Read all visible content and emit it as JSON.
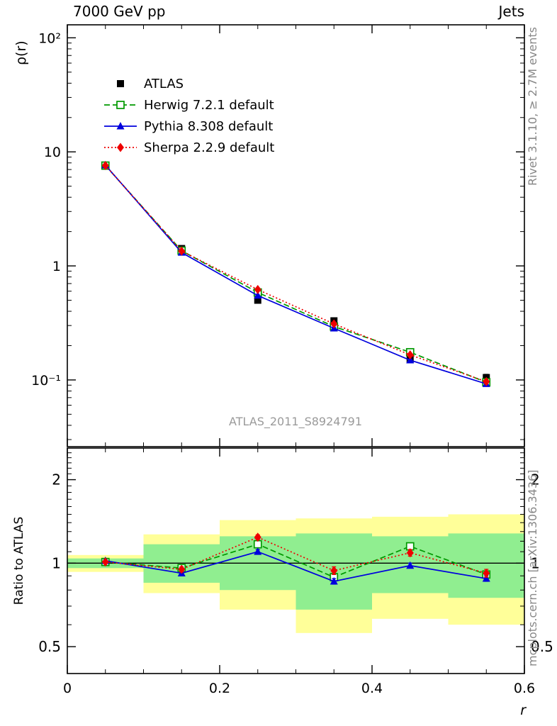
{
  "header": {
    "left": "7000 GeV pp",
    "right": "Jets"
  },
  "side_notes": {
    "top": "Rivet 3.1.10, ≥ 2.7M events",
    "bottom": "mcplots.cern.ch [arXiv:1306.3436]"
  },
  "watermark": "ATLAS_2011_S8924791",
  "chart_data": {
    "type": "line",
    "title": "7000 GeV pp — Jets",
    "xlabel": "r",
    "x": [
      0.05,
      0.15,
      0.25,
      0.35,
      0.45,
      0.55
    ],
    "xlim": [
      0,
      0.6
    ],
    "x_minor_step": 0.05,
    "xticks": [
      0,
      0.2,
      0.4,
      0.6
    ],
    "xtick_labels": [
      "0",
      "0.2",
      "0.4",
      "0.6"
    ],
    "bin_edges": [
      0,
      0.1,
      0.2,
      0.3,
      0.4,
      0.5,
      0.6
    ],
    "legend_position": "top-left-inside",
    "main": {
      "ylabel": "ρ(r)",
      "yscale": "log",
      "ylim": [
        0.026,
        130
      ],
      "yticks": [
        0.1,
        1,
        10,
        100
      ],
      "ytick_labels": [
        "10⁻¹",
        "1",
        "10",
        "10²"
      ],
      "series": [
        {
          "name": "ATLAS",
          "color": "#000000",
          "marker": "square-filled",
          "line": "none",
          "values": [
            7.5,
            1.42,
            0.5,
            0.33,
            0.152,
            0.105
          ],
          "errors": [
            0.25,
            0.06,
            0.022,
            0.015,
            0.008,
            0.007
          ]
        },
        {
          "name": "Herwig 7.2.1 default",
          "color": "#009900",
          "marker": "square-open",
          "line": "dashed",
          "values": [
            7.58,
            1.36,
            0.585,
            0.294,
            0.175,
            0.0955
          ],
          "errors": [
            0.05,
            0.012,
            0.006,
            0.004,
            0.003,
            0.002
          ]
        },
        {
          "name": "Pythia 8.308 default",
          "color": "#0000dd",
          "marker": "triangle-filled",
          "line": "solid",
          "values": [
            7.65,
            1.31,
            0.55,
            0.284,
            0.149,
            0.0924
          ],
          "errors": [
            0.05,
            0.012,
            0.006,
            0.004,
            0.003,
            0.002
          ]
        },
        {
          "name": "Sherpa 2.2.9 default",
          "color": "#ee0000",
          "marker": "diamond-filled",
          "line": "dotted",
          "values": [
            7.58,
            1.35,
            0.62,
            0.31,
            0.166,
            0.0966
          ],
          "errors": [
            0.08,
            0.02,
            0.01,
            0.007,
            0.005,
            0.004
          ]
        }
      ]
    },
    "ratio": {
      "ylabel": "Ratio to ATLAS",
      "yscale": "log",
      "ylim": [
        0.4,
        2.6
      ],
      "yticks": [
        0.5,
        1,
        2
      ],
      "ytick_labels": [
        "0.5",
        "1",
        "2"
      ],
      "reference": {
        "name": "ATLAS",
        "value": 1,
        "color": "#000000"
      },
      "bands": [
        {
          "name": "uncertainty-band-outer",
          "color": "#ffff99",
          "ranges": [
            [
              0.93,
              1.07
            ],
            [
              0.78,
              1.27
            ],
            [
              0.68,
              1.43
            ],
            [
              0.56,
              1.45
            ],
            [
              0.63,
              1.47
            ],
            [
              0.6,
              1.5
            ]
          ]
        },
        {
          "name": "uncertainty-band-inner",
          "color": "#90ee90",
          "ranges": [
            [
              0.96,
              1.04
            ],
            [
              0.85,
              1.17
            ],
            [
              0.8,
              1.25
            ],
            [
              0.68,
              1.28
            ],
            [
              0.78,
              1.25
            ],
            [
              0.75,
              1.28
            ]
          ]
        }
      ],
      "series": [
        {
          "name": "Herwig 7.2.1 default",
          "color": "#009900",
          "marker": "square-open",
          "line": "dashed",
          "values": [
            1.01,
            0.96,
            1.17,
            0.89,
            1.15,
            0.91
          ],
          "errors": [
            0.01,
            0.015,
            0.02,
            0.02,
            0.025,
            0.025
          ]
        },
        {
          "name": "Pythia 8.308 default",
          "color": "#0000dd",
          "marker": "triangle-filled",
          "line": "solid",
          "values": [
            1.02,
            0.92,
            1.1,
            0.86,
            0.98,
            0.88
          ],
          "errors": [
            0.01,
            0.015,
            0.02,
            0.02,
            0.02,
            0.02
          ]
        },
        {
          "name": "Sherpa 2.2.9 default",
          "color": "#ee0000",
          "marker": "diamond-filled",
          "line": "dotted",
          "values": [
            1.01,
            0.95,
            1.24,
            0.94,
            1.09,
            0.92
          ],
          "errors": [
            0.012,
            0.02,
            0.025,
            0.03,
            0.03,
            0.03
          ]
        }
      ]
    }
  }
}
